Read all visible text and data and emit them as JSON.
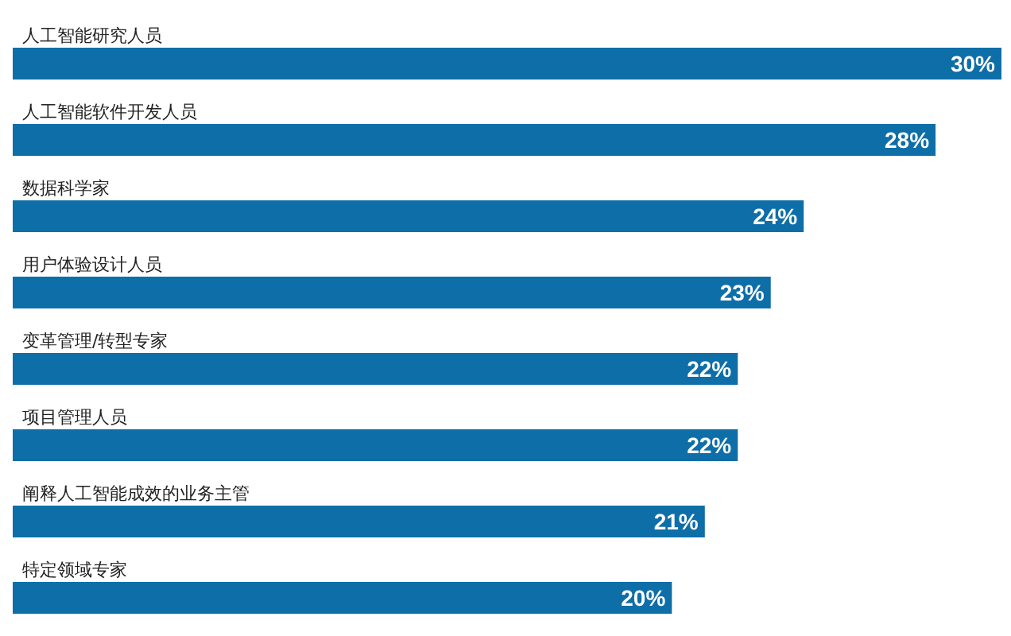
{
  "chart_data": {
    "type": "bar",
    "orientation": "horizontal",
    "categories": [
      "人工智能研究人员",
      "人工智能软件开发人员",
      "数据科学家",
      "用户体验设计人员",
      "变革管理/转型专家",
      "项目管理人员",
      "阐释人工智能成效的业务主管",
      "特定领域专家"
    ],
    "values": [
      30,
      28,
      24,
      23,
      22,
      22,
      21,
      20
    ],
    "value_labels": [
      "30%",
      "28%",
      "24%",
      "23%",
      "22%",
      "22%",
      "21%",
      "20%"
    ],
    "color": "#0e6ea8",
    "grid": false,
    "legend": false
  }
}
